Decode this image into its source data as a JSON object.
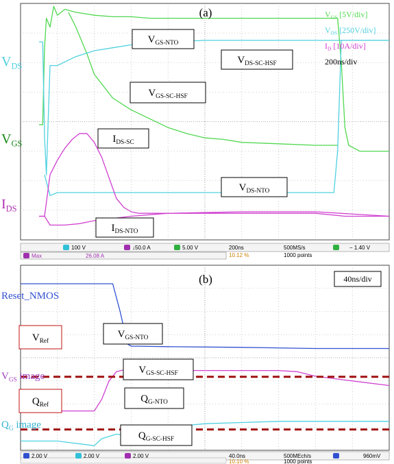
{
  "colors": {
    "vgs": "#4fd84f",
    "vds": "#4fd0e0",
    "id": "#d040d0",
    "reset": "#3050d0",
    "ref": "#a01010",
    "grid": "#a8a8a8",
    "text": "#000000"
  },
  "panel_a": {
    "title": "(a)",
    "legend": [
      {
        "main": "V",
        "sub": "GS",
        "rest": " [5V/div]",
        "color": "#4fd84f"
      },
      {
        "main": "V",
        "sub": "DS",
        "rest": " [250V/div]",
        "color": "#4fd0e0"
      },
      {
        "main": "I",
        "sub": "D",
        "rest": " [10A/div]",
        "color": "#d040d0"
      },
      {
        "main": "200ns/div",
        "sub": "",
        "rest": "",
        "color": "#000000"
      }
    ],
    "channel_labels": [
      {
        "main": "V",
        "sub": "DS",
        "color": "#4fd0e0"
      },
      {
        "main": "V",
        "sub": "GS",
        "color": "#1a8a1a"
      },
      {
        "main": "I",
        "sub": "DS",
        "color": "#b030b0"
      }
    ],
    "boxes": [
      {
        "main": "V",
        "sub": "GS-NTO"
      },
      {
        "main": "V",
        "sub": "DS-SC-HSF"
      },
      {
        "main": "V",
        "sub": "GS-SC-HSF"
      },
      {
        "main": "I",
        "sub": "DS-SC"
      },
      {
        "main": "V",
        "sub": "DS-NTO"
      },
      {
        "main": "I",
        "sub": "DS-NTO"
      }
    ],
    "status1": {
      "ch2": "100 V",
      "ch3": "↓50.0 A",
      "ch4": "5.00 V",
      "timebase": "200ns",
      "trigpos": "10.12 %",
      "rate": "500MS/s",
      "points": "1000 points",
      "trig": "− 1.40 V"
    },
    "status2": {
      "label": "Max",
      "value": "26.08 A"
    }
  },
  "panel_b": {
    "title": "(b)",
    "timediv": "40ns/div",
    "channel_labels": [
      {
        "main": "Reset_NMOS",
        "sub": "",
        "rest": "",
        "color": "#3050d0"
      },
      {
        "main": "V",
        "sub": "GS",
        "rest": " image",
        "color": "#a040c0"
      },
      {
        "main": "Q",
        "sub": "G",
        "rest": " image",
        "color": "#30b0d0"
      }
    ],
    "ref_boxes": [
      {
        "main": "V",
        "sub": "Ref"
      },
      {
        "main": "Q",
        "sub": "Ref"
      }
    ],
    "boxes": [
      {
        "main": "V",
        "sub": "GS-NTO"
      },
      {
        "main": "V",
        "sub": "GS-SC-HSF"
      },
      {
        "main": "Q",
        "sub": "G-NTO"
      },
      {
        "main": "Q",
        "sub": "G-SC-HSF"
      }
    ],
    "status": {
      "ch1": "2.00 V",
      "ch2": "2.00 V",
      "ch3": "2.00 V",
      "timebase": "40.0ns",
      "trigpos": "10.10 %",
      "rate": "500MEch/s",
      "points": "1000 points",
      "trig": "960mV"
    }
  },
  "chart_data": [
    {
      "type": "line",
      "title": "(a)",
      "x_unit": "div",
      "xlim": [
        0,
        10
      ],
      "ylim": [
        -4,
        4
      ],
      "series": [
        {
          "name": "VGS [5V/div]",
          "x": [
            0.5,
            0.6,
            0.65,
            0.7,
            0.8,
            0.9,
            1.0,
            1.2,
            1.5,
            2.0,
            2.5,
            3.0,
            3.5,
            4.0,
            5.0,
            6.0,
            7.0,
            8.0,
            8.6,
            8.7,
            8.8,
            8.9,
            9.2,
            10.0
          ],
          "y": [
            -0.1,
            -0.1,
            2.5,
            3.5,
            3.2,
            3.9,
            3.6,
            3.8,
            3.7,
            3.6,
            3.55,
            3.55,
            3.5,
            3.5,
            3.5,
            3.5,
            3.5,
            3.5,
            3.5,
            2.0,
            -0.2,
            -0.8,
            -1.0,
            -1.0
          ]
        },
        {
          "name": "VGS (SC-HSF)",
          "x": [
            1.3,
            1.5,
            1.8,
            2.0,
            2.5,
            3.0,
            3.5,
            4.0,
            4.5,
            5.0,
            5.5,
            6.0,
            7.0,
            8.0,
            8.6
          ],
          "y": [
            3.7,
            3.2,
            2.3,
            1.6,
            0.8,
            0.4,
            0.1,
            -0.2,
            -0.4,
            -0.55,
            -0.6,
            -0.7,
            -0.75,
            -0.8,
            -0.8
          ]
        },
        {
          "name": "VDS [250V/div]",
          "x": [
            0.5,
            0.6,
            0.65,
            0.7,
            0.8,
            1.0,
            1.5,
            2.0,
            2.5,
            3.0,
            4.0,
            5.0,
            6.0,
            7.0,
            8.0,
            8.5,
            8.8,
            10.0
          ],
          "y": [
            2.7,
            2.7,
            -0.5,
            -1.8,
            1.9,
            1.9,
            2.2,
            2.4,
            2.5,
            2.6,
            2.7,
            2.75,
            2.75,
            2.75,
            2.75,
            2.75,
            2.75,
            2.75
          ]
        },
        {
          "name": "VDS (NTO)",
          "x": [
            0.65,
            0.8,
            1.0,
            2.0,
            3.0,
            4.0,
            5.0,
            6.0,
            7.0,
            8.0,
            8.5,
            8.6,
            8.7,
            10.0
          ],
          "y": [
            -1.8,
            -2.5,
            -2.4,
            -2.4,
            -2.4,
            -2.4,
            -2.4,
            -2.4,
            -2.4,
            -2.4,
            -2.4,
            -1.0,
            2.75,
            2.75
          ]
        },
        {
          "name": "ID [10A/div]",
          "x": [
            0.5,
            0.65,
            0.8,
            1.0,
            1.2,
            1.4,
            1.6,
            1.8,
            2.0,
            2.2,
            2.4,
            2.6,
            2.8,
            3.0,
            3.2,
            4.0,
            6.0,
            8.0,
            8.8,
            10.0
          ],
          "y": [
            -3.2,
            -3.2,
            -1.8,
            -1.3,
            -0.9,
            -0.6,
            -0.4,
            -0.4,
            -0.7,
            -1.2,
            -1.9,
            -2.6,
            -2.9,
            -3.05,
            -3.1,
            -3.1,
            -3.1,
            -3.1,
            -3.2,
            -3.2
          ]
        },
        {
          "name": "ID (NTO)",
          "x": [
            0.5,
            0.65,
            0.8,
            1.2,
            1.6,
            2.0,
            3.0,
            4.0,
            6.0,
            8.0,
            10.0
          ],
          "y": [
            -3.2,
            -3.2,
            -3.5,
            -3.5,
            -3.45,
            -3.35,
            -3.2,
            -3.1,
            -3.05,
            -3.05,
            -3.2
          ]
        }
      ]
    },
    {
      "type": "line",
      "title": "(b)",
      "x_unit": "div",
      "xlim": [
        0,
        10
      ],
      "ylim": [
        -4,
        4
      ],
      "series": [
        {
          "name": "Reset_NMOS",
          "x": [
            0,
            1.0,
            2.5,
            2.7,
            2.9,
            3.0,
            3.2,
            4.0,
            6.0,
            8.0,
            10.0
          ],
          "y": [
            3.2,
            3.2,
            3.2,
            2.0,
            0.6,
            0.5,
            0.5,
            0.48,
            0.45,
            0.4,
            0.4
          ]
        },
        {
          "name": "VGS image",
          "x": [
            0,
            1.0,
            2.0,
            2.2,
            2.4,
            2.6,
            3.0,
            3.5,
            4.0,
            5.0,
            6.0,
            7.0,
            7.5,
            8.0,
            9.0,
            10.0
          ],
          "y": [
            -2.3,
            -2.3,
            -2.3,
            -1.8,
            -1.0,
            -0.6,
            -0.45,
            -0.5,
            -0.55,
            -0.55,
            -0.55,
            -0.55,
            -0.6,
            -0.8,
            -1.0,
            -1.2
          ]
        },
        {
          "name": "QG image",
          "x": [
            0,
            1.0,
            2.0,
            2.2,
            2.6,
            3.0,
            3.5,
            4.0,
            5.0,
            6.0,
            7.0,
            8.0,
            9.0,
            10.0
          ],
          "y": [
            -3.6,
            -3.6,
            -3.8,
            -3.5,
            -3.3,
            -3.4,
            -3.2,
            -3.0,
            -2.85,
            -2.8,
            -2.75,
            -2.75,
            -2.75,
            -2.75
          ]
        },
        {
          "name": "VRef",
          "x": [
            0,
            10
          ],
          "y": [
            -0.82,
            -0.82
          ]
        },
        {
          "name": "QRef",
          "x": [
            0,
            10
          ],
          "y": [
            -3.1,
            -3.1
          ]
        }
      ]
    }
  ]
}
